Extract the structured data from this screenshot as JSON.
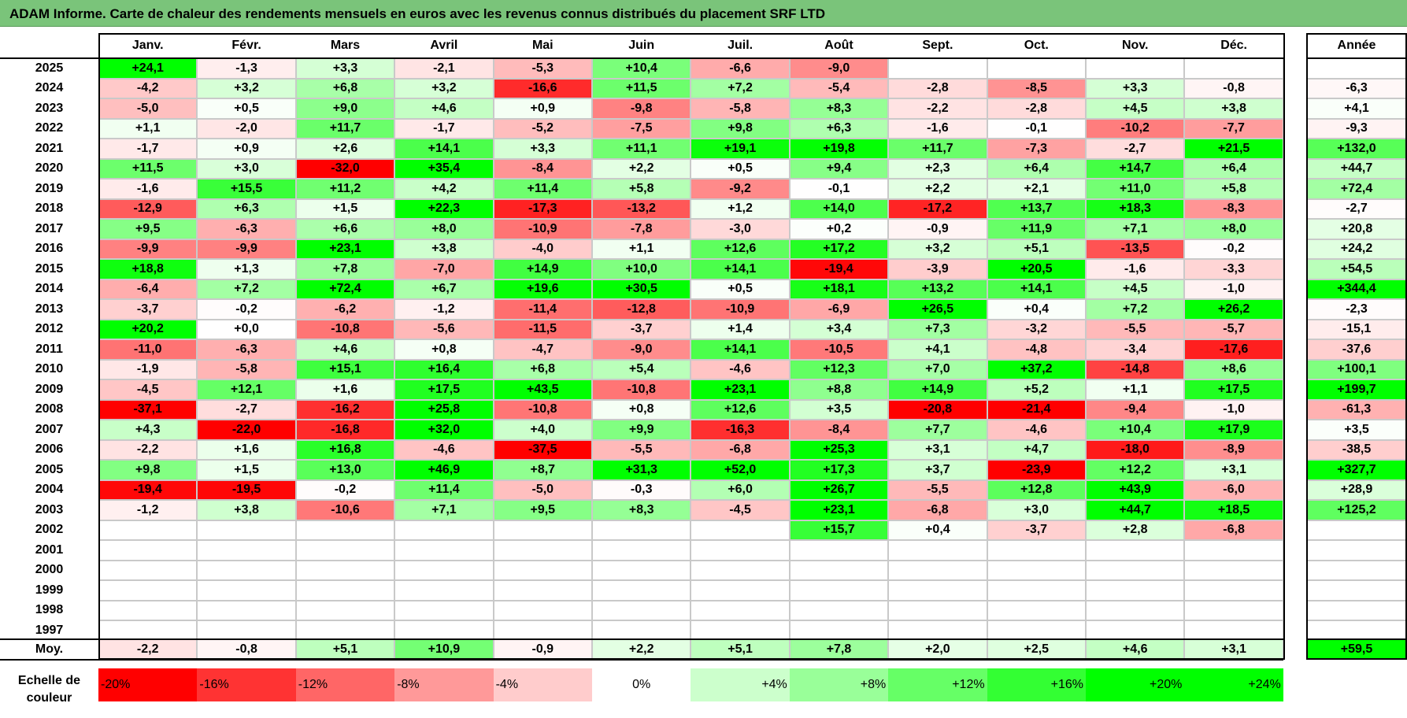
{
  "title": "ADAM Informe. Carte de chaleur des rendements mensuels en euros avec les revenus connus distribués du placement SRF LTD",
  "chart_data": {
    "type": "heatmap",
    "title": "ADAM Informe. Carte de chaleur des rendements mensuels en euros avec les revenus connus distribués du placement SRF LTD",
    "months": [
      "Janv.",
      "Févr.",
      "Mars",
      "Avril",
      "Mai",
      "Juin",
      "Juil.",
      "Août",
      "Sept.",
      "Oct.",
      "Nov.",
      "Déc."
    ],
    "year_header": "Année",
    "rows": [
      {
        "year": "2025",
        "values": [
          "+24,1",
          "-1,3",
          "+3,3",
          "-2,1",
          "-5,3",
          "+10,4",
          "-6,6",
          "-9,0",
          "",
          "",
          "",
          ""
        ],
        "annual": ""
      },
      {
        "year": "2024",
        "values": [
          "-4,2",
          "+3,2",
          "+6,8",
          "+3,2",
          "-16,6",
          "+11,5",
          "+7,2",
          "-5,4",
          "-2,8",
          "-8,5",
          "+3,3",
          "-0,8"
        ],
        "annual": "-6,3"
      },
      {
        "year": "2023",
        "values": [
          "-5,0",
          "+0,5",
          "+9,0",
          "+4,6",
          "+0,9",
          "-9,8",
          "-5,8",
          "+8,3",
          "-2,2",
          "-2,8",
          "+4,5",
          "+3,8"
        ],
        "annual": "+4,1"
      },
      {
        "year": "2022",
        "values": [
          "+1,1",
          "-2,0",
          "+11,7",
          "-1,7",
          "-5,2",
          "-7,5",
          "+9,8",
          "+6,3",
          "-1,6",
          "-0,1",
          "-10,2",
          "-7,7"
        ],
        "annual": "-9,3"
      },
      {
        "year": "2021",
        "values": [
          "-1,7",
          "+0,9",
          "+2,6",
          "+14,1",
          "+3,3",
          "+11,1",
          "+19,1",
          "+19,8",
          "+11,7",
          "-7,3",
          "-2,7",
          "+21,5"
        ],
        "annual": "+132,0"
      },
      {
        "year": "2020",
        "values": [
          "+11,5",
          "+3,0",
          "-32,0",
          "+35,4",
          "-8,4",
          "+2,2",
          "+0,5",
          "+9,4",
          "+2,3",
          "+6,4",
          "+14,7",
          "+6,4"
        ],
        "annual": "+44,7"
      },
      {
        "year": "2019",
        "values": [
          "-1,6",
          "+15,5",
          "+11,2",
          "+4,2",
          "+11,4",
          "+5,8",
          "-9,2",
          "-0,1",
          "+2,2",
          "+2,1",
          "+11,0",
          "+5,8"
        ],
        "annual": "+72,4"
      },
      {
        "year": "2018",
        "values": [
          "-12,9",
          "+6,3",
          "+1,5",
          "+22,3",
          "-17,3",
          "-13,2",
          "+1,2",
          "+14,0",
          "-17,2",
          "+13,7",
          "+18,3",
          "-8,3"
        ],
        "annual": "-2,7"
      },
      {
        "year": "2017",
        "values": [
          "+9,5",
          "-6,3",
          "+6,6",
          "+8,0",
          "-10,9",
          "-7,8",
          "-3,0",
          "+0,2",
          "-0,9",
          "+11,9",
          "+7,1",
          "+8,0"
        ],
        "annual": "+20,8"
      },
      {
        "year": "2016",
        "values": [
          "-9,9",
          "-9,9",
          "+23,1",
          "+3,8",
          "-4,0",
          "+1,1",
          "+12,6",
          "+17,2",
          "+3,2",
          "+5,1",
          "-13,5",
          "-0,2"
        ],
        "annual": "+24,2"
      },
      {
        "year": "2015",
        "values": [
          "+18,8",
          "+1,3",
          "+7,8",
          "-7,0",
          "+14,9",
          "+10,0",
          "+14,1",
          "-19,4",
          "-3,9",
          "+20,5",
          "-1,6",
          "-3,3"
        ],
        "annual": "+54,5"
      },
      {
        "year": "2014",
        "values": [
          "-6,4",
          "+7,2",
          "+72,4",
          "+6,7",
          "+19,6",
          "+30,5",
          "+0,5",
          "+18,1",
          "+13,2",
          "+14,1",
          "+4,5",
          "-1,0"
        ],
        "annual": "+344,4"
      },
      {
        "year": "2013",
        "values": [
          "-3,7",
          "-0,2",
          "-6,2",
          "-1,2",
          "-11,4",
          "-12,8",
          "-10,9",
          "-6,9",
          "+26,5",
          "+0,4",
          "+7,2",
          "+26,2"
        ],
        "annual": "-2,3"
      },
      {
        "year": "2012",
        "values": [
          "+20,2",
          "+0,0",
          "-10,8",
          "-5,6",
          "-11,5",
          "-3,7",
          "+1,4",
          "+3,4",
          "+7,3",
          "-3,2",
          "-5,5",
          "-5,7"
        ],
        "annual": "-15,1"
      },
      {
        "year": "2011",
        "values": [
          "-11,0",
          "-6,3",
          "+4,6",
          "+0,8",
          "-4,7",
          "-9,0",
          "+14,1",
          "-10,5",
          "+4,1",
          "-4,8",
          "-3,4",
          "-17,6"
        ],
        "annual": "-37,6"
      },
      {
        "year": "2010",
        "values": [
          "-1,9",
          "-5,8",
          "+15,1",
          "+16,4",
          "+6,8",
          "+5,4",
          "-4,6",
          "+12,3",
          "+7,0",
          "+37,2",
          "-14,8",
          "+8,6"
        ],
        "annual": "+100,1"
      },
      {
        "year": "2009",
        "values": [
          "-4,5",
          "+12,1",
          "+1,6",
          "+17,5",
          "+43,5",
          "-10,8",
          "+23,1",
          "+8,8",
          "+14,9",
          "+5,2",
          "+1,1",
          "+17,5"
        ],
        "annual": "+199,7"
      },
      {
        "year": "2008",
        "values": [
          "-37,1",
          "-2,7",
          "-16,2",
          "+25,8",
          "-10,8",
          "+0,8",
          "+12,6",
          "+3,5",
          "-20,8",
          "-21,4",
          "-9,4",
          "-1,0"
        ],
        "annual": "-61,3"
      },
      {
        "year": "2007",
        "values": [
          "+4,3",
          "-22,0",
          "-16,8",
          "+32,0",
          "+4,0",
          "+9,9",
          "-16,3",
          "-8,4",
          "+7,7",
          "-4,6",
          "+10,4",
          "+17,9"
        ],
        "annual": "+3,5"
      },
      {
        "year": "2006",
        "values": [
          "-2,2",
          "+1,6",
          "+16,8",
          "-4,6",
          "-37,5",
          "-5,5",
          "-6,8",
          "+25,3",
          "+3,1",
          "+4,7",
          "-18,0",
          "-8,9"
        ],
        "annual": "-38,5"
      },
      {
        "year": "2005",
        "values": [
          "+9,8",
          "+1,5",
          "+13,0",
          "+46,9",
          "+8,7",
          "+31,3",
          "+52,0",
          "+17,3",
          "+3,7",
          "-23,9",
          "+12,2",
          "+3,1"
        ],
        "annual": "+327,7"
      },
      {
        "year": "2004",
        "values": [
          "-19,4",
          "-19,5",
          "-0,2",
          "+11,4",
          "-5,0",
          "-0,3",
          "+6,0",
          "+26,7",
          "-5,5",
          "+12,8",
          "+43,9",
          "-6,0"
        ],
        "annual": "+28,9"
      },
      {
        "year": "2003",
        "values": [
          "-1,2",
          "+3,8",
          "-10,6",
          "+7,1",
          "+9,5",
          "+8,3",
          "-4,5",
          "+23,1",
          "-6,8",
          "+3,0",
          "+44,7",
          "+18,5"
        ],
        "annual": "+125,2"
      },
      {
        "year": "2002",
        "values": [
          "",
          "",
          "",
          "",
          "",
          "",
          "",
          "+15,7",
          "+0,4",
          "-3,7",
          "+2,8",
          "-6,8"
        ],
        "annual": ""
      },
      {
        "year": "2001",
        "values": [
          "",
          "",
          "",
          "",
          "",
          "",
          "",
          "",
          "",
          "",
          "",
          ""
        ],
        "annual": ""
      },
      {
        "year": "2000",
        "values": [
          "",
          "",
          "",
          "",
          "",
          "",
          "",
          "",
          "",
          "",
          "",
          ""
        ],
        "annual": ""
      },
      {
        "year": "1999",
        "values": [
          "",
          "",
          "",
          "",
          "",
          "",
          "",
          "",
          "",
          "",
          "",
          ""
        ],
        "annual": ""
      },
      {
        "year": "1998",
        "values": [
          "",
          "",
          "",
          "",
          "",
          "",
          "",
          "",
          "",
          "",
          "",
          ""
        ],
        "annual": ""
      },
      {
        "year": "1997",
        "values": [
          "",
          "",
          "",
          "",
          "",
          "",
          "",
          "",
          "",
          "",
          "",
          ""
        ],
        "annual": ""
      }
    ],
    "average": {
      "label": "Moy.",
      "values": [
        "-2,2",
        "-0,8",
        "+5,1",
        "+10,9",
        "-0,9",
        "+2,2",
        "+5,1",
        "+7,8",
        "+2,0",
        "+2,5",
        "+4,6",
        "+3,1"
      ],
      "annual": "+59,5"
    },
    "color_scale": {
      "label": "Echelle de couleur",
      "stops": [
        {
          "label": "-20%",
          "color": "#ff0000"
        },
        {
          "label": "-16%",
          "color": "#ff3333"
        },
        {
          "label": "-12%",
          "color": "#ff6666"
        },
        {
          "label": "-8%",
          "color": "#ff9999"
        },
        {
          "label": "-4%",
          "color": "#ffcccc"
        },
        {
          "label": "0%",
          "color": "#ffffff"
        },
        {
          "label": "+4%",
          "color": "#ccffcc"
        },
        {
          "label": "+8%",
          "color": "#99ff99"
        },
        {
          "label": "+12%",
          "color": "#66ff66"
        },
        {
          "label": "+16%",
          "color": "#33ff33"
        },
        {
          "label": "+20%",
          "color": "#00ff00"
        },
        {
          "label": "+24%",
          "color": "#00ff00"
        }
      ]
    }
  }
}
